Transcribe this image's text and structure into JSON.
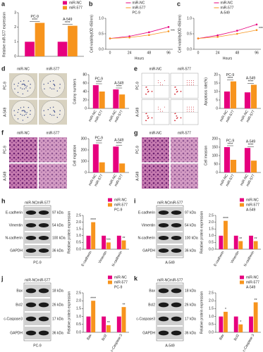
{
  "chart_data": [
    {
      "label": "a",
      "type": "bar",
      "ylabel": "Relative miR-577 expression",
      "categories": [
        "PC-9",
        "A-549"
      ],
      "category_position": "top",
      "significance": [
        "****",
        "****"
      ],
      "series": [
        {
          "name": "miR-NC",
          "color": "#e6007e",
          "values": [
            1,
            1
          ]
        },
        {
          "name": "miR-577",
          "color": "#f7941d",
          "values": [
            2.3,
            2.1
          ]
        }
      ],
      "ylim": [
        0,
        3
      ],
      "yticks": [
        0,
        1,
        2,
        3
      ],
      "legend": "top-right"
    },
    {
      "label": "b",
      "type": "line",
      "ylabel": "Cell viability(OD 450nm)",
      "xlabel": "Hours",
      "subtitle": "PC-9",
      "categories": [
        "0",
        "24",
        "48",
        "96"
      ],
      "significance": [
        "***"
      ],
      "series": [
        {
          "name": "miR-NC",
          "color": "#e6007e",
          "values": [
            0.35,
            0.42,
            0.55,
            0.72
          ]
        },
        {
          "name": "miR-577",
          "color": "#f7941d",
          "values": [
            0.35,
            0.38,
            0.46,
            0.58
          ]
        }
      ],
      "ylim": [
        0,
        1
      ],
      "yticks": [
        {
          "value": 0,
          "label": "0.0"
        },
        {
          "value": 0.5,
          "label": "0.5"
        },
        {
          "value": 1,
          "label": "1.0"
        }
      ],
      "legend": "top-right"
    },
    {
      "label": "c",
      "type": "line",
      "ylabel": "Cell viability(OD 450nm)",
      "xlabel": "Hours",
      "subtitle": "A-549",
      "categories": [
        "0",
        "24",
        "48",
        "96"
      ],
      "significance": [
        "***"
      ],
      "series": [
        {
          "name": "miR-NC",
          "color": "#e6007e",
          "values": [
            0.35,
            0.45,
            0.6,
            0.8
          ]
        },
        {
          "name": "miR-577",
          "color": "#f7941d",
          "values": [
            0.35,
            0.4,
            0.5,
            0.62
          ]
        }
      ],
      "ylim": [
        0,
        1
      ],
      "yticks": [
        {
          "value": 0,
          "label": "0.0"
        },
        {
          "value": 0.5,
          "label": "0.5"
        },
        {
          "value": 1,
          "label": "1.0"
        }
      ],
      "legend": "top-right"
    },
    {
      "type": "bar",
      "ylabel": "Colony numbers",
      "categories": [
        "PC-9",
        "A-549"
      ],
      "category_position": "top",
      "x_labels": "rotated",
      "significance": [
        "****",
        "****"
      ],
      "series": [
        {
          "name": "miR-NC",
          "color": "#e6007e",
          "values": [
            55,
            45
          ]
        },
        {
          "name": "miR-577",
          "color": "#f7941d",
          "values": [
            40,
            33
          ]
        }
      ],
      "ylim": [
        0,
        80
      ],
      "yticks": [
        0,
        20,
        40,
        60,
        80
      ]
    },
    {
      "type": "bar",
      "ylabel": "Apoptosis rate(%)",
      "categories": [
        "PC-9",
        "A-549"
      ],
      "category_position": "top",
      "x_labels": "rotated",
      "significance": [
        "****",
        "****"
      ],
      "series": [
        {
          "name": "miR-NC",
          "color": "#e6007e",
          "values": [
            10,
            9.5
          ]
        },
        {
          "name": "miR-577",
          "color": "#f7941d",
          "values": [
            16,
            14
          ]
        }
      ],
      "ylim": [
        0,
        20
      ],
      "yticks": [
        0,
        5,
        10,
        15,
        20
      ]
    },
    {
      "type": "bar",
      "ylabel": "Cell migration",
      "categories": [
        "PC-9",
        "A-549"
      ],
      "category_position": "top",
      "x_labels": "rotated",
      "significance": [
        "****",
        "****"
      ],
      "series": [
        {
          "name": "miR-NC",
          "color": "#e6007e",
          "values": [
            250,
            230
          ]
        },
        {
          "name": "miR-577",
          "color": "#f7941d",
          "values": [
            90,
            80
          ]
        }
      ],
      "ylim": [
        0,
        300
      ],
      "yticks": [
        0,
        100,
        200,
        300
      ]
    },
    {
      "type": "bar",
      "ylabel": "Cell invasion",
      "categories": [
        "PC-9",
        "A-549"
      ],
      "category_position": "top",
      "x_labels": "rotated",
      "significance": [
        "****",
        "****"
      ],
      "series": [
        {
          "name": "miR-NC",
          "color": "#e6007e",
          "values": [
            150,
            145
          ]
        },
        {
          "name": "miR-577",
          "color": "#f7941d",
          "values": [
            75,
            70
          ]
        }
      ],
      "ylim": [
        0,
        200
      ],
      "yticks": [
        0,
        50,
        100,
        150,
        200
      ]
    },
    {
      "type": "bar",
      "ylabel": "Relative protein expression",
      "subtitle": "PC-9",
      "categories": [
        "E-cadherin",
        "Vimentin",
        "N-cadherin"
      ],
      "category_position": "bottom",
      "significance": [
        "****",
        "***",
        "**"
      ],
      "series": [
        {
          "name": "miR-NC",
          "color": "#e6007e",
          "values": [
            1,
            1,
            1
          ]
        },
        {
          "name": "miR-577",
          "color": "#f7941d",
          "values": [
            2.0,
            0.5,
            0.65
          ]
        }
      ],
      "ylim": [
        0,
        2.5
      ],
      "yticks": [
        {
          "value": 0,
          "label": "0.0"
        },
        {
          "value": 0.5,
          "label": "0.5"
        },
        {
          "value": 1,
          "label": "1.0"
        },
        {
          "value": 1.5,
          "label": "1.5"
        },
        {
          "value": 2,
          "label": "2.0"
        },
        {
          "value": 2.5,
          "label": "2.5"
        }
      ],
      "legend": "top-right"
    },
    {
      "type": "bar",
      "ylabel": "Relative protein expression",
      "subtitle": "A-549",
      "categories": [
        "E-cadherin",
        "Vimentin",
        "N-cadherin"
      ],
      "category_position": "bottom",
      "significance": [
        "****",
        "**",
        "**"
      ],
      "series": [
        {
          "name": "miR-NC",
          "color": "#e6007e",
          "values": [
            1,
            1,
            1
          ]
        },
        {
          "name": "miR-577",
          "color": "#f7941d",
          "values": [
            2.1,
            0.6,
            0.6
          ]
        }
      ],
      "ylim": [
        0,
        2.5
      ],
      "yticks": [
        {
          "value": 0,
          "label": "0.0"
        },
        {
          "value": 0.5,
          "label": "0.5"
        },
        {
          "value": 1,
          "label": "1.0"
        },
        {
          "value": 1.5,
          "label": "1.5"
        },
        {
          "value": 2,
          "label": "2.0"
        },
        {
          "value": 2.5,
          "label": "2.5"
        }
      ],
      "legend": "top-right"
    },
    {
      "type": "bar",
      "ylabel": "Relative protein expression",
      "subtitle": "PC-9",
      "categories": [
        "Bax",
        "Bcl2",
        "c-Caspase 3"
      ],
      "category_position": "bottom",
      "significance": [
        "****",
        "**",
        "**"
      ],
      "series": [
        {
          "name": "miR-NC",
          "color": "#e6007e",
          "values": [
            1,
            1,
            1
          ]
        },
        {
          "name": "miR-577",
          "color": "#f7941d",
          "values": [
            2.0,
            0.45,
            1.6
          ]
        }
      ],
      "ylim": [
        0,
        2.5
      ],
      "yticks": [
        {
          "value": 0,
          "label": "0.0"
        },
        {
          "value": 0.5,
          "label": "0.5"
        },
        {
          "value": 1,
          "label": "1.0"
        },
        {
          "value": 1.5,
          "label": "1.5"
        },
        {
          "value": 2,
          "label": "2.0"
        },
        {
          "value": 2.5,
          "label": "2.5"
        }
      ],
      "legend": "top-right"
    },
    {
      "type": "bar",
      "ylabel": "Relative protein expression",
      "subtitle": "A-549",
      "categories": [
        "Bax",
        "Bcl2",
        "c-Caspase 3"
      ],
      "category_position": "bottom",
      "significance": [
        "*",
        "*",
        "**"
      ],
      "series": [
        {
          "name": "miR-NC",
          "color": "#e6007e",
          "values": [
            1,
            1,
            1
          ]
        },
        {
          "name": "miR-577",
          "color": "#f7941d",
          "values": [
            1.3,
            0.5,
            1.9
          ]
        }
      ],
      "ylim": [
        0,
        2.5
      ],
      "yticks": [
        {
          "value": 0,
          "label": "0.0"
        },
        {
          "value": 0.5,
          "label": "0.5"
        },
        {
          "value": 1,
          "label": "1.0"
        },
        {
          "value": 1.5,
          "label": "1.5"
        },
        {
          "value": 2,
          "label": "2.0"
        },
        {
          "value": 2.5,
          "label": "2.5"
        }
      ],
      "legend": "top-right"
    }
  ],
  "image_panels": [
    {
      "label": "d",
      "kind": "colony",
      "columns": [
        "miR-NC",
        "miR-577"
      ],
      "rows": [
        "PC-9",
        "A-549"
      ]
    },
    {
      "label": "e",
      "kind": "flow",
      "columns": [
        "miR-NC",
        "miR-577"
      ],
      "rows": [
        "PC-9",
        "A-549"
      ]
    },
    {
      "label": "f",
      "kind": "stain",
      "columns": [
        "miR-NC",
        "miR-577"
      ],
      "rows": [
        "PC-9",
        "A-549"
      ]
    },
    {
      "label": "g",
      "kind": "stain",
      "columns": [
        "miR-NC",
        "miR-577"
      ],
      "rows": [
        "PC-9",
        "A-549"
      ]
    }
  ],
  "blots": [
    {
      "label": "h",
      "columns": [
        "miR-NC",
        "miR-577"
      ],
      "bands": [
        {
          "name": "E-cadherin",
          "size": "97 kDa"
        },
        {
          "name": "Vimentin",
          "size": "54 kDa"
        },
        {
          "name": "N-cadherin",
          "size": "100 kDa"
        },
        {
          "name": "GAPDH",
          "size": "36 kDa"
        }
      ],
      "cell_line": "PC-9"
    },
    {
      "label": "i",
      "columns": [
        "miR-NC",
        "miR-577"
      ],
      "bands": [
        {
          "name": "E-cadherin",
          "size": "97 kDa"
        },
        {
          "name": "Vimentin",
          "size": "54 kDa"
        },
        {
          "name": "N-cadherin",
          "size": "100 kDa"
        },
        {
          "name": "GAPDH",
          "size": "36 kDa"
        }
      ],
      "cell_line": "A-549"
    },
    {
      "label": "j",
      "columns": [
        "miR-NC",
        "miR-577"
      ],
      "bands": [
        {
          "name": "Bax",
          "size": "18 kDa"
        },
        {
          "name": "Bcl2",
          "size": "26 kDa"
        },
        {
          "name": "c-Caspase3",
          "size": "17 kDa"
        },
        {
          "name": "GAPDH",
          "size": "36 kDa"
        }
      ],
      "cell_line": "PC-9"
    },
    {
      "label": "k",
      "columns": [
        "miR-NC",
        "miR-577"
      ],
      "bands": [
        {
          "name": "Bax",
          "size": "18 kDa"
        },
        {
          "name": "Bcl2",
          "size": "26 kDa"
        },
        {
          "name": "c-Caspase3",
          "size": "17 kDa"
        },
        {
          "name": "GAPDH",
          "size": "36 kDa"
        }
      ],
      "cell_line": "A-549"
    }
  ]
}
